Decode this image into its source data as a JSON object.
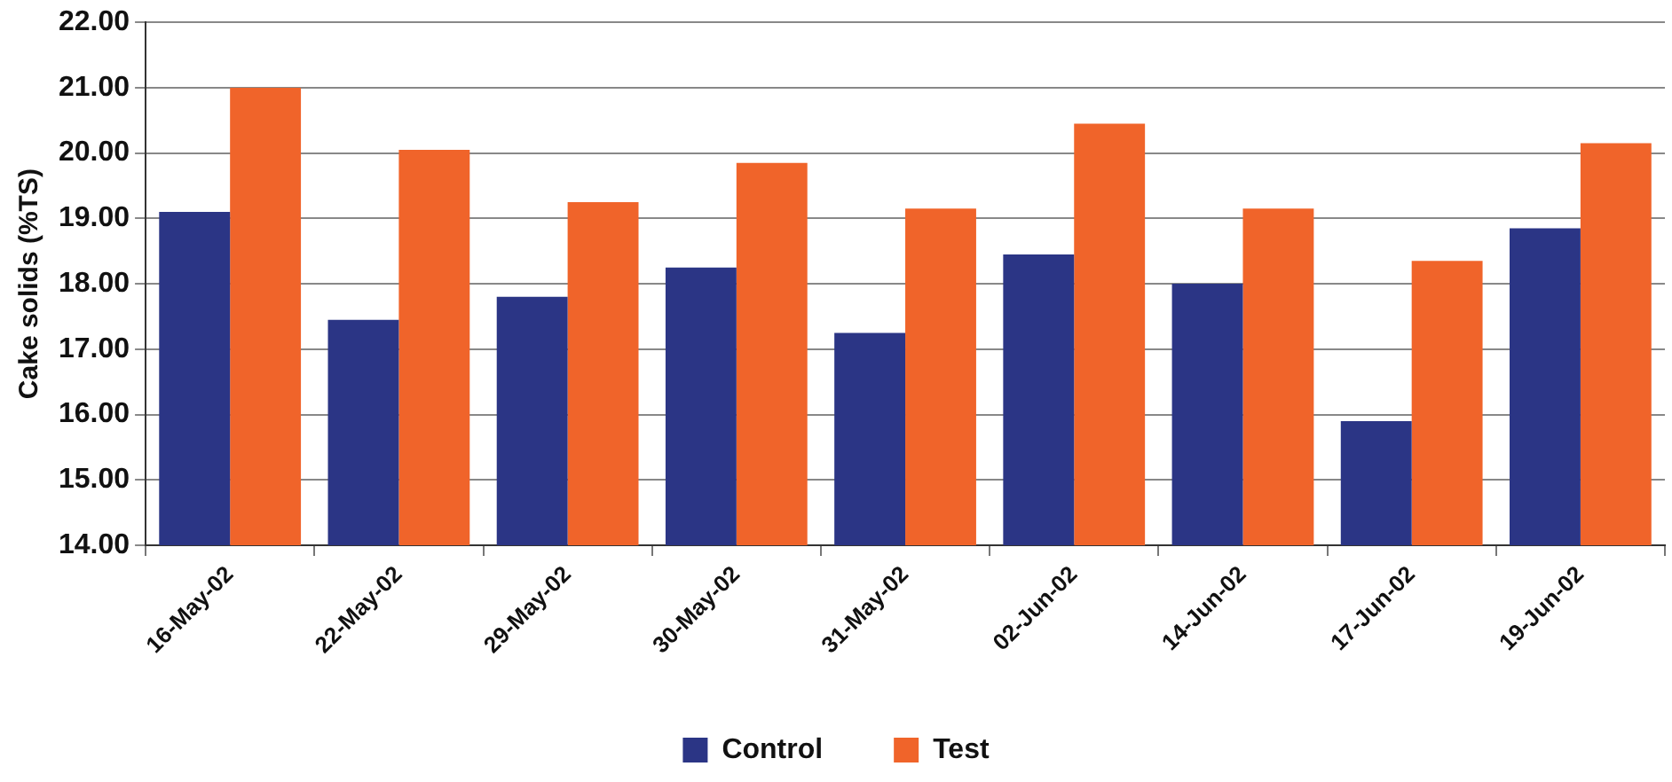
{
  "chart_data": {
    "type": "bar",
    "ylabel": "Cake solids (%TS)",
    "categories": [
      "16-May-02",
      "22-May-02",
      "29-May-02",
      "30-May-02",
      "31-May-02",
      "02-Jun-02",
      "14-Jun-02",
      "17-Jun-02",
      "19-Jun-02"
    ],
    "series": [
      {
        "name": "Control",
        "color": "#2b3585",
        "values": [
          19.1,
          17.45,
          17.8,
          18.25,
          17.25,
          18.45,
          18.0,
          15.9,
          18.85
        ]
      },
      {
        "name": "Test",
        "color": "#f0642a",
        "values": [
          21.0,
          20.05,
          19.25,
          19.85,
          19.15,
          20.45,
          19.15,
          18.35,
          20.15
        ]
      }
    ],
    "ylim": [
      14,
      22
    ],
    "yticks": [
      {
        "value": 14,
        "label": "14.00"
      },
      {
        "value": 15,
        "label": "15.00"
      },
      {
        "value": 16,
        "label": "16.00"
      },
      {
        "value": 17,
        "label": "17.00"
      },
      {
        "value": 18,
        "label": "18.00"
      },
      {
        "value": 19,
        "label": "19.00"
      },
      {
        "value": 20,
        "label": "20.00"
      },
      {
        "value": 21,
        "label": "21.00"
      },
      {
        "value": 22,
        "label": "22.00"
      }
    ],
    "grid": "y",
    "legend": "bottom"
  }
}
